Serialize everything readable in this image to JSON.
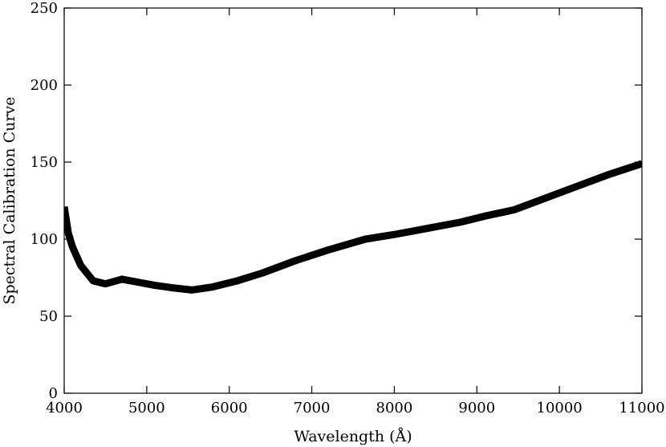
{
  "chart_data": {
    "type": "line",
    "xlabel": "Wavelength (Å)",
    "ylabel": "Spectral Calibration Curve",
    "xlim": [
      4000,
      11000
    ],
    "ylim": [
      0,
      250
    ],
    "xticks": [
      4000,
      5000,
      6000,
      7000,
      8000,
      9000,
      10000,
      11000
    ],
    "yticks": [
      0,
      50,
      100,
      150,
      200,
      250
    ],
    "grid": false,
    "series": [
      {
        "color": "#000000",
        "x": [
          4000,
          4050,
          4100,
          4200,
          4350,
          4500,
          4700,
          4900,
          5100,
          5300,
          5550,
          5800,
          6100,
          6400,
          6800,
          7200,
          7650,
          8000,
          8400,
          8800,
          9100,
          9450,
          9800,
          10200,
          10600,
          11000
        ],
        "y": [
          121,
          104,
          95,
          83,
          73,
          71,
          74,
          72,
          70,
          68.5,
          67,
          69,
          73,
          78,
          86,
          93,
          100,
          103,
          107,
          111,
          115,
          119,
          126,
          134,
          142,
          149
        ]
      }
    ]
  }
}
